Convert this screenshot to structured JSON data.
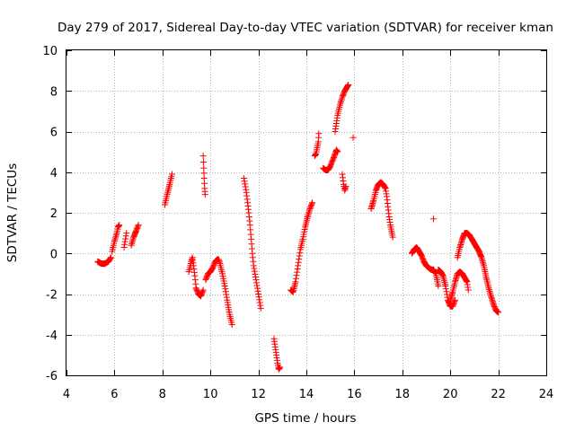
{
  "chart_data": {
    "type": "scatter",
    "title": "Day 279 of 2017, Sidereal Day-to-day VTEC variation (SDTVAR) for receiver kman",
    "xlabel": "GPS time / hours",
    "ylabel": "SDTVAR / TECUs",
    "xlim": [
      4,
      24
    ],
    "ylim": [
      -6,
      10
    ],
    "xticks": [
      4,
      6,
      8,
      10,
      12,
      14,
      16,
      18,
      20,
      22,
      24
    ],
    "yticks": [
      -6,
      -4,
      -2,
      0,
      2,
      4,
      6,
      8,
      10
    ],
    "grid": true,
    "marker": "+",
    "color": "#ff0000",
    "segments": [
      {
        "x": [
          5.3,
          5.45,
          5.6,
          5.75,
          5.85
        ],
        "y": [
          -0.4,
          -0.5,
          -0.5,
          -0.4,
          -0.2
        ]
      },
      {
        "x": [
          5.9,
          6.0,
          6.1,
          6.15,
          6.2
        ],
        "y": [
          0.1,
          0.6,
          1.0,
          1.3,
          1.4
        ]
      },
      {
        "x": [
          6.4,
          6.5
        ],
        "y": [
          0.3,
          1.0
        ]
      },
      {
        "x": [
          6.7,
          6.8,
          6.9,
          7.0
        ],
        "y": [
          0.4,
          0.8,
          1.1,
          1.4
        ]
      },
      {
        "x": [
          8.1,
          8.2,
          8.3,
          8.4
        ],
        "y": [
          2.4,
          2.9,
          3.4,
          3.9
        ]
      },
      {
        "x": [
          9.1,
          9.2,
          9.25,
          9.3,
          9.35,
          9.4,
          9.5,
          9.6,
          9.7
        ],
        "y": [
          -0.9,
          -0.4,
          -0.2,
          -0.6,
          -1.1,
          -1.7,
          -2.0,
          -2.1,
          -1.8
        ]
      },
      {
        "x": [
          9.7,
          9.72,
          9.74,
          9.76,
          9.78
        ],
        "y": [
          4.8,
          4.2,
          3.7,
          3.2,
          2.9
        ]
      },
      {
        "x": [
          9.8,
          9.9,
          10.0,
          10.1,
          10.2,
          10.3,
          10.35,
          10.4,
          10.5,
          10.6,
          10.7,
          10.8,
          10.9
        ],
        "y": [
          -1.3,
          -1.0,
          -0.9,
          -0.7,
          -0.4,
          -0.3,
          -0.3,
          -0.5,
          -1.0,
          -1.6,
          -2.3,
          -3.0,
          -3.5
        ]
      },
      {
        "x": [
          11.4,
          11.5,
          11.55,
          11.6,
          11.65,
          11.7,
          11.75,
          11.8,
          11.9,
          12.0,
          12.1
        ],
        "y": [
          3.7,
          3.0,
          2.5,
          2.0,
          1.4,
          0.7,
          0.0,
          -0.6,
          -1.3,
          -2.0,
          -2.7
        ]
      },
      {
        "x": [
          12.65,
          12.7,
          12.75,
          12.8,
          12.85,
          12.9
        ],
        "y": [
          -4.2,
          -4.6,
          -5.0,
          -5.4,
          -5.7,
          -5.6
        ]
      },
      {
        "x": [
          13.35,
          13.45,
          13.55,
          13.65,
          13.75,
          13.85,
          13.95,
          14.05,
          14.15,
          14.25
        ],
        "y": [
          -1.8,
          -1.9,
          -1.4,
          -0.6,
          0.2,
          0.7,
          1.3,
          1.8,
          2.2,
          2.5
        ]
      },
      {
        "x": [
          14.35,
          14.4,
          14.45,
          14.5,
          14.52
        ],
        "y": [
          4.8,
          4.9,
          5.2,
          5.5,
          5.9
        ]
      },
      {
        "x": [
          14.7,
          14.8,
          14.9,
          15.0,
          15.1,
          15.2,
          15.25,
          15.3
        ],
        "y": [
          4.2,
          4.1,
          4.1,
          4.3,
          4.6,
          4.9,
          5.1,
          5.0
        ]
      },
      {
        "x": [
          15.2,
          15.3,
          15.4,
          15.5,
          15.6,
          15.7,
          15.75
        ],
        "y": [
          6.0,
          6.8,
          7.3,
          7.7,
          8.0,
          8.2,
          8.3
        ]
      },
      {
        "x": [
          15.5,
          15.55,
          15.6,
          15.65
        ],
        "y": [
          3.9,
          3.4,
          3.1,
          3.3
        ]
      },
      {
        "x": [
          15.95
        ],
        "y": [
          5.7
        ]
      },
      {
        "x": [
          16.7,
          16.8,
          16.9,
          17.0,
          17.1,
          17.2,
          17.3,
          17.35,
          17.4,
          17.45,
          17.5,
          17.55,
          17.6
        ],
        "y": [
          2.2,
          2.6,
          3.1,
          3.4,
          3.5,
          3.4,
          3.2,
          2.8,
          2.3,
          1.8,
          1.4,
          1.1,
          0.8
        ]
      },
      {
        "x": [
          18.4,
          18.5,
          18.6,
          18.7,
          18.8,
          18.9,
          19.0,
          19.1,
          19.2,
          19.3,
          19.4,
          19.5
        ],
        "y": [
          0.0,
          0.2,
          0.3,
          0.1,
          -0.1,
          -0.4,
          -0.6,
          -0.7,
          -0.8,
          -0.8,
          -1.0,
          -1.6
        ]
      },
      {
        "x": [
          19.3
        ],
        "y": [
          1.7
        ]
      },
      {
        "x": [
          19.5,
          19.6,
          19.7,
          19.8,
          19.9,
          20.0,
          20.1,
          20.2
        ],
        "y": [
          -0.8,
          -0.9,
          -1.1,
          -1.6,
          -2.3,
          -2.6,
          -2.6,
          -2.3
        ]
      },
      {
        "x": [
          20.0,
          20.1,
          20.2,
          20.3,
          20.4,
          20.5,
          20.6,
          20.7,
          20.75
        ],
        "y": [
          -2.3,
          -1.9,
          -1.4,
          -1.0,
          -0.9,
          -1.0,
          -1.2,
          -1.4,
          -1.8
        ]
      },
      {
        "x": [
          20.3,
          20.4,
          20.5,
          20.6,
          20.7,
          20.8,
          20.9,
          21.0,
          21.1,
          21.2,
          21.3,
          21.4,
          21.5,
          21.6,
          21.7,
          21.8,
          21.9,
          22.0
        ],
        "y": [
          -0.2,
          0.3,
          0.7,
          1.0,
          1.0,
          0.9,
          0.7,
          0.5,
          0.3,
          0.1,
          -0.2,
          -0.6,
          -1.2,
          -1.7,
          -2.1,
          -2.5,
          -2.8,
          -2.9
        ]
      }
    ]
  }
}
